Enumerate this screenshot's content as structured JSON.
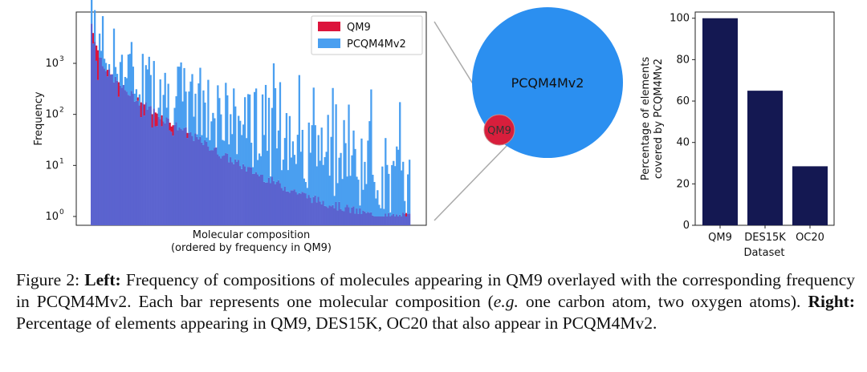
{
  "chart_data": [
    {
      "type": "bar",
      "scale": "log",
      "ylabel": "Frequency",
      "xlabel_line1": "Molecular composition",
      "xlabel_line2": "(ordered by frequency in QM9)",
      "ytick_labels": [
        "10",
        "10",
        "10",
        "10"
      ],
      "ytick_exponents": [
        "0",
        "1",
        "2",
        "3"
      ],
      "yticks": [
        1,
        10,
        100,
        1000
      ],
      "legend": [
        "QM9",
        "PCQM4Mv2"
      ],
      "legend_position": "top-right",
      "colors": {
        "qm9": "#dc143c",
        "pcqm": "#4a9ff0",
        "overlap": "#5b63cf"
      },
      "envelope_qm9": [
        [
          0,
          6000
        ],
        [
          0.02,
          1700
        ],
        [
          0.05,
          700
        ],
        [
          0.1,
          320
        ],
        [
          0.2,
          110
        ],
        [
          0.3,
          45
        ],
        [
          0.4,
          18
        ],
        [
          0.5,
          8
        ],
        [
          0.6,
          4
        ],
        [
          0.7,
          2.2
        ],
        [
          0.78,
          1.6
        ],
        [
          0.85,
          1.2
        ],
        [
          0.9,
          1
        ],
        [
          1,
          1
        ]
      ],
      "envelope_pcqm": [
        [
          0,
          4000
        ],
        [
          0.05,
          1500
        ],
        [
          0.15,
          500
        ],
        [
          0.3,
          200
        ],
        [
          0.5,
          60
        ],
        [
          0.7,
          25
        ],
        [
          0.85,
          12
        ],
        [
          1,
          5
        ]
      ]
    },
    {
      "type": "venn",
      "sets": [
        {
          "name": "PCQM4Mv2",
          "size": 1.0,
          "color": "#2b8ff0"
        },
        {
          "name": "QM9",
          "size": 0.04,
          "color": "#d81e3c"
        }
      ]
    },
    {
      "type": "bar",
      "categories": [
        "QM9",
        "DES15K",
        "OC20"
      ],
      "values": [
        100,
        65,
        28.5
      ],
      "ylabel_line1": "Percentage of elements",
      "ylabel_line2": "covered by PCQM4Mv2",
      "xlabel": "Dataset",
      "ylim": [
        0,
        103
      ],
      "yticks": [
        0,
        20,
        40,
        60,
        80,
        100
      ],
      "color": "#141852"
    }
  ],
  "caption": {
    "fig_label": "Figure 2:",
    "left_label": "Left:",
    "text1": "Frequency of compositions of molecules appearing in QM9 overlayed with the corresponding frequency in PCQM4Mv2. Each bar represents one molecular composition (",
    "eg": "e.g.",
    "text2": " one carbon atom, two oxygen atoms).",
    "right_label": "Right:",
    "text3": "Percentage of elements appearing in QM9, DES15K, OC20 that also appear in PCQM4Mv2."
  }
}
